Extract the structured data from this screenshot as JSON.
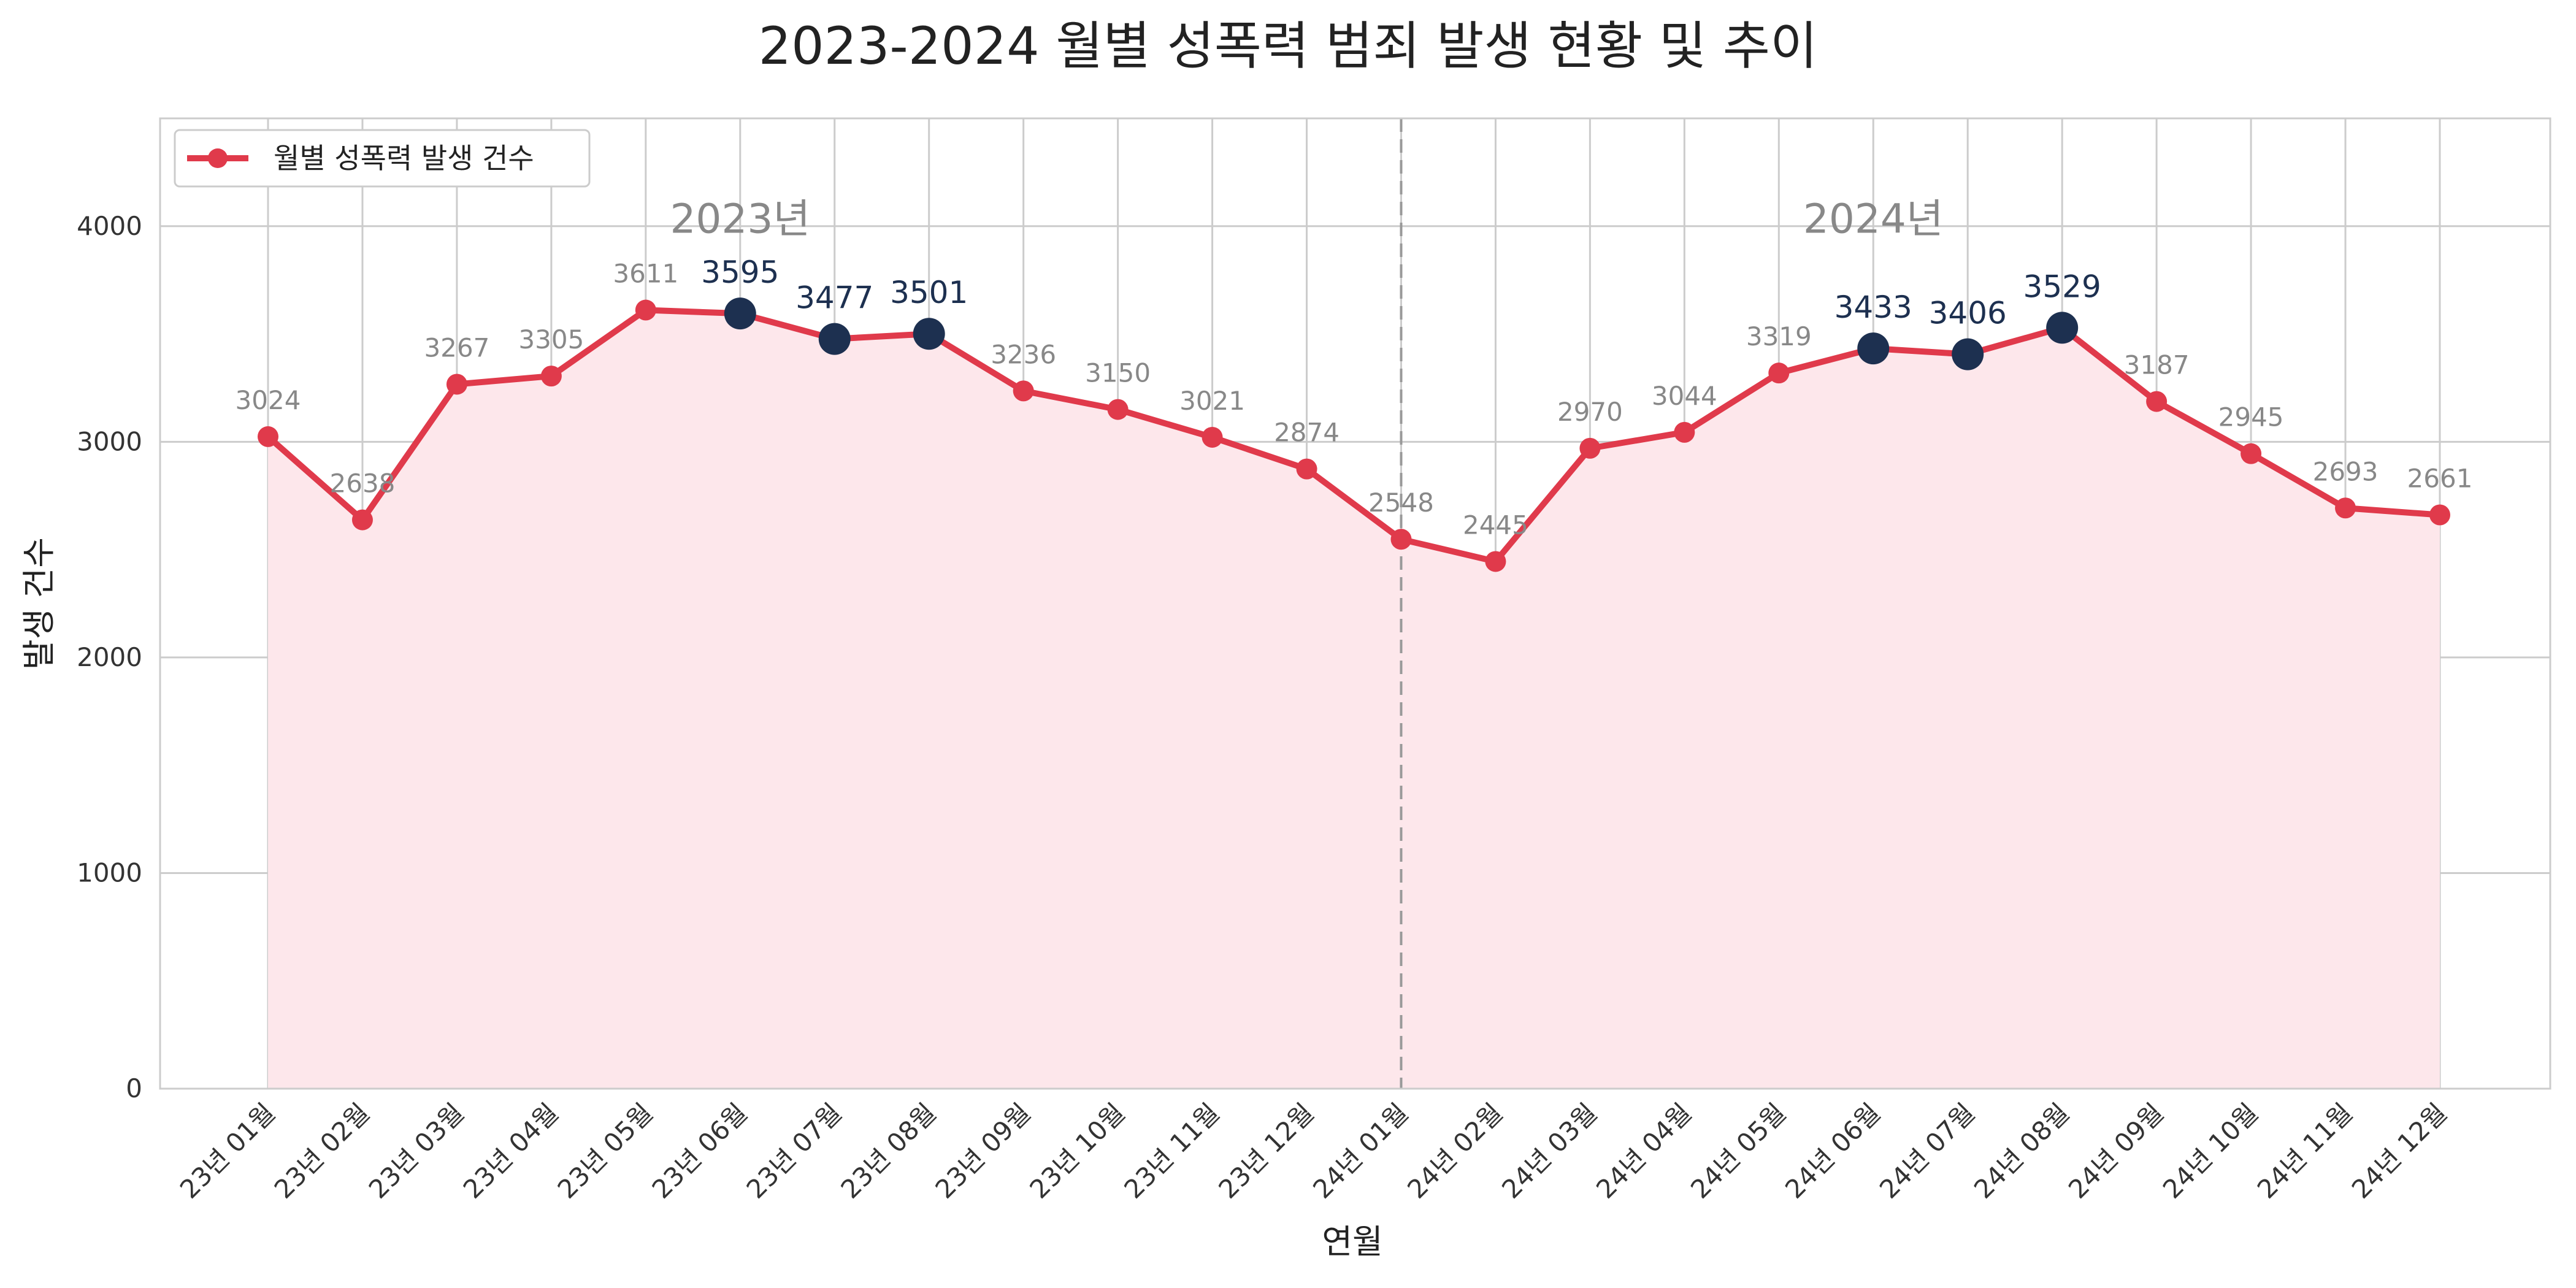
{
  "chart_data": {
    "type": "line",
    "title": "2023-2024 월별 성폭력 범죄 발생 현황 및 추이",
    "xlabel": "연월",
    "ylabel": "발생 건수",
    "ylim": [
      0,
      4500
    ],
    "yticks": [
      0,
      1000,
      2000,
      3000,
      4000
    ],
    "grid": true,
    "legend": {
      "label": "월별 성폭력 발생 건수",
      "position": "top-left"
    },
    "categories": [
      "23년 01월",
      "23년 02월",
      "23년 03월",
      "23년 04월",
      "23년 05월",
      "23년 06월",
      "23년 07월",
      "23년 08월",
      "23년 09월",
      "23년 10월",
      "23년 11월",
      "23년 12월",
      "24년 01월",
      "24년 02월",
      "24년 03월",
      "24년 04월",
      "24년 05월",
      "24년 06월",
      "24년 07월",
      "24년 08월",
      "24년 09월",
      "24년 10월",
      "24년 11월",
      "24년 12월"
    ],
    "series": [
      {
        "name": "월별 성폭력 발생 건수",
        "values": [
          3024,
          2638,
          3267,
          3305,
          3611,
          3595,
          3477,
          3501,
          3236,
          3150,
          3021,
          2874,
          2548,
          2445,
          2970,
          3044,
          3319,
          3433,
          3406,
          3529,
          3187,
          2945,
          2693,
          2661
        ]
      }
    ],
    "value_labels": [
      "3024",
      "2638",
      "3267",
      "3305",
      "3611",
      "3595",
      "3477",
      "3501",
      "3236",
      "3150",
      "3021",
      "2874",
      "2548",
      "2445",
      "2970",
      "3044",
      "3319",
      "3433",
      "3406",
      "3529",
      "3187",
      "2945",
      "2693",
      "2661"
    ],
    "highlighted_indices": [
      5,
      6,
      7,
      17,
      18,
      19
    ],
    "divider_category": "24년 01월",
    "year_annotations": [
      {
        "text": "2023년",
        "category_index": 5,
        "y": 3970
      },
      {
        "text": "2024년",
        "category_index": 17,
        "y": 3970
      }
    ],
    "colors": {
      "line": "#e03a4b",
      "fill": "#fde7eb",
      "highlight": "#1d3050",
      "grid": "#cccccc",
      "divider": "#999999"
    }
  }
}
